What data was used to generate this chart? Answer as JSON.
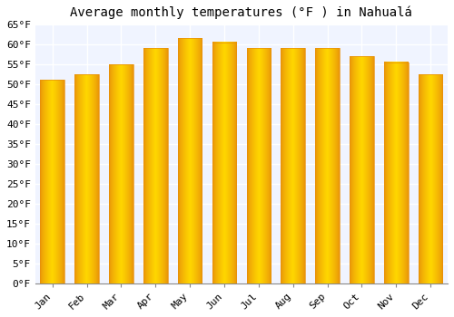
{
  "title": "Average monthly temperatures (°F ) in Nahualá",
  "months": [
    "Jan",
    "Feb",
    "Mar",
    "Apr",
    "May",
    "Jun",
    "Jul",
    "Aug",
    "Sep",
    "Oct",
    "Nov",
    "Dec"
  ],
  "values": [
    51.0,
    52.5,
    55.0,
    59.0,
    61.5,
    60.5,
    59.0,
    59.0,
    59.0,
    57.0,
    55.5,
    52.5
  ],
  "bar_color_center": "#FFD700",
  "bar_color_edge": "#E8900A",
  "ylim": [
    0,
    65
  ],
  "yticks": [
    0,
    5,
    10,
    15,
    20,
    25,
    30,
    35,
    40,
    45,
    50,
    55,
    60,
    65
  ],
  "ytick_labels": [
    "0°F",
    "5°F",
    "10°F",
    "15°F",
    "20°F",
    "25°F",
    "30°F",
    "35°F",
    "40°F",
    "45°F",
    "50°F",
    "55°F",
    "60°F",
    "65°F"
  ],
  "background_color": "#FFFFFF",
  "plot_bg_color": "#F0F4FF",
  "grid_color": "#FFFFFF",
  "title_fontsize": 10,
  "tick_fontsize": 8,
  "font_family": "monospace"
}
